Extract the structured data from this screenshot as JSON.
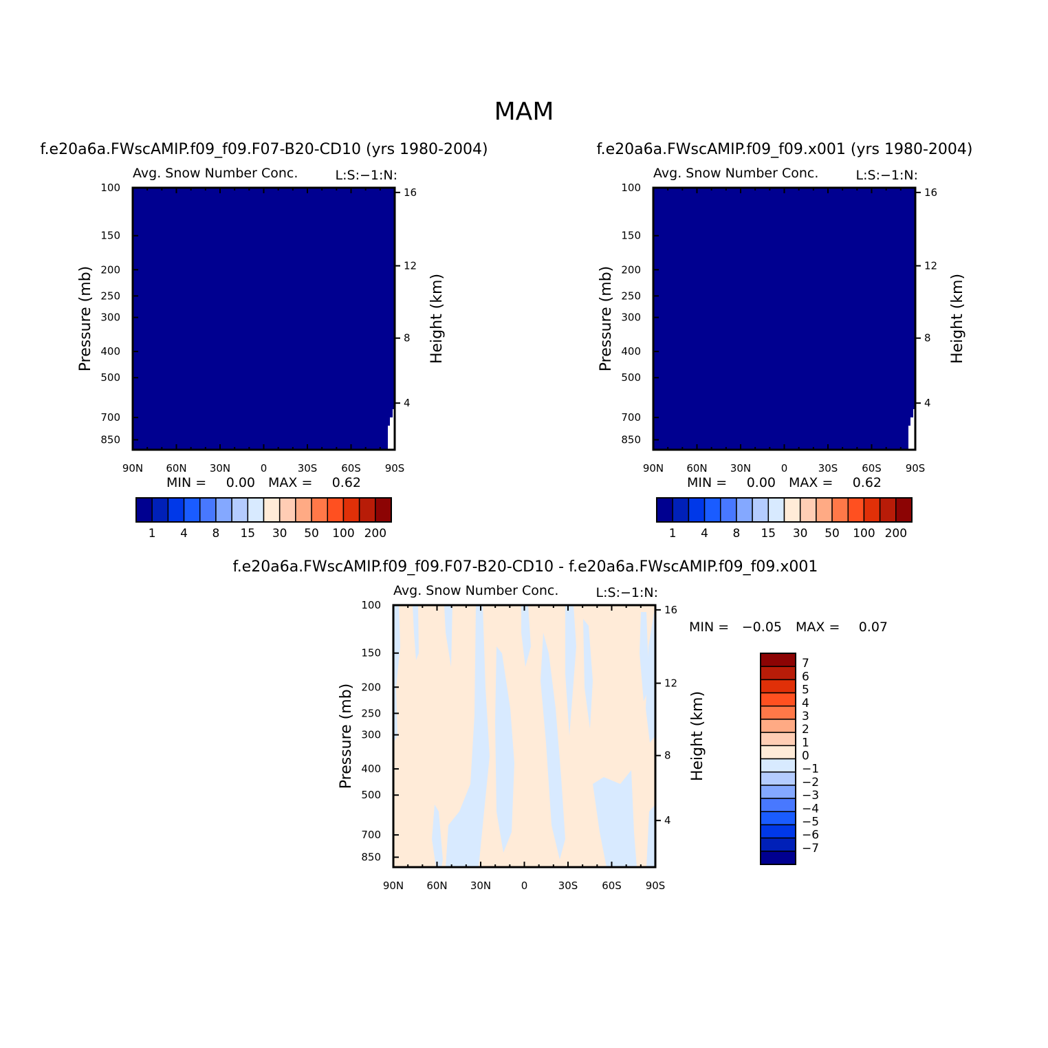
{
  "figure": {
    "title": "MAM"
  },
  "chart_data": [
    {
      "type": "heatmap",
      "case_title": "f.e20a6a.FWscAMIP.f09_f09.F07-B20-CD10 (yrs 1980-2004)",
      "title": "Avg. Snow Number Conc.",
      "title_right": "L:S:-1:N:",
      "xlabel": "",
      "ylabel": "Pressure (mb)",
      "ylabel_right": "Height (km)",
      "x_ticks": [
        "90N",
        "60N",
        "30N",
        "0",
        "30S",
        "60S",
        "90S"
      ],
      "y_ticks": [
        "100",
        "150",
        "200",
        "250",
        "300",
        "400",
        "500",
        "700",
        "850"
      ],
      "y_ticks_right": [
        "16",
        "12",
        "8",
        "4"
      ],
      "min_label": "MIN =",
      "min_value": "0.00",
      "max_label": "MAX =",
      "max_value": "0.62",
      "fill_level": "1",
      "colorbar": {
        "orientation": "horizontal",
        "labels": [
          "1",
          "4",
          "8",
          "15",
          "30",
          "50",
          "100",
          "200"
        ],
        "colors": [
          "#000090",
          "#0020b8",
          "#0038e8",
          "#1a5cff",
          "#4878ff",
          "#84a8ff",
          "#b4ccff",
          "#d8eaff",
          "#ffebd8",
          "#ffcdb4",
          "#ffaa84",
          "#ff7848",
          "#ff5020",
          "#e03008",
          "#b81c08",
          "#8c0404"
        ]
      }
    },
    {
      "type": "heatmap",
      "case_title": "f.e20a6a.FWscAMIP.f09_f09.x001 (yrs 1980-2004)",
      "title": "Avg. Snow Number Conc.",
      "title_right": "L:S:-1:N:",
      "xlabel": "",
      "ylabel": "Pressure (mb)",
      "ylabel_right": "Height (km)",
      "x_ticks": [
        "90N",
        "60N",
        "30N",
        "0",
        "30S",
        "60S",
        "90S"
      ],
      "y_ticks": [
        "100",
        "150",
        "200",
        "250",
        "300",
        "400",
        "500",
        "700",
        "850"
      ],
      "y_ticks_right": [
        "16",
        "12",
        "8",
        "4"
      ],
      "min_label": "MIN =",
      "min_value": "0.00",
      "max_label": "MAX =",
      "max_value": "0.62",
      "fill_level": "1",
      "colorbar": {
        "orientation": "horizontal",
        "labels": [
          "1",
          "4",
          "8",
          "15",
          "30",
          "50",
          "100",
          "200"
        ],
        "colors": [
          "#000090",
          "#0020b8",
          "#0038e8",
          "#1a5cff",
          "#4878ff",
          "#84a8ff",
          "#b4ccff",
          "#d8eaff",
          "#ffebd8",
          "#ffcdb4",
          "#ffaa84",
          "#ff7848",
          "#ff5020",
          "#e03008",
          "#b81c08",
          "#8c0404"
        ]
      }
    },
    {
      "type": "heatmap",
      "case_title": "f.e20a6a.FWscAMIP.f09_f09.F07-B20-CD10 - f.e20a6a.FWscAMIP.f09_f09.x001",
      "title": "Avg. Snow Number Conc.",
      "title_right": "L:S:-1:N:",
      "xlabel": "",
      "ylabel": "Pressure (mb)",
      "ylabel_right": "Height (km)",
      "x_ticks": [
        "90N",
        "60N",
        "30N",
        "0",
        "30S",
        "60S",
        "90S"
      ],
      "y_ticks": [
        "100",
        "150",
        "200",
        "250",
        "300",
        "400",
        "500",
        "700",
        "850"
      ],
      "y_ticks_right": [
        "16",
        "12",
        "8",
        "4"
      ],
      "min_label": "MIN =",
      "min_value": "-0.05",
      "max_label": "MAX =",
      "max_value": "0.07",
      "fill_levels": [
        "0",
        "-1"
      ],
      "colorbar": {
        "orientation": "vertical",
        "labels": [
          "7",
          "6",
          "5",
          "4",
          "3",
          "2",
          "1",
          "0",
          "-1",
          "-2",
          "-3",
          "-4",
          "-5",
          "-6",
          "-7"
        ],
        "colors": [
          "#8c0404",
          "#b81c08",
          "#e03008",
          "#ff5020",
          "#ff7848",
          "#ffaa84",
          "#ffcdb4",
          "#ffebd8",
          "#d8eaff",
          "#b4ccff",
          "#84a8ff",
          "#4878ff",
          "#1a5cff",
          "#0038e8",
          "#0020b8",
          "#000090"
        ]
      }
    }
  ]
}
